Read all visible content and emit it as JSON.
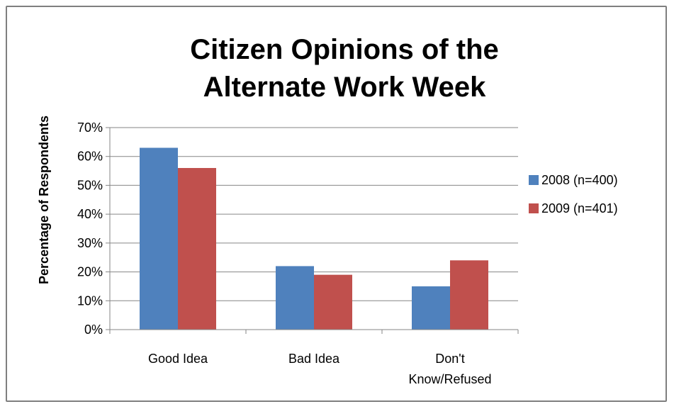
{
  "chart_data": {
    "type": "bar",
    "title": [
      "Citizen Opinions of the",
      "Alternate Work Week"
    ],
    "ylabel": "Percentage of Respondents",
    "xlabel": "",
    "categories": [
      [
        "Good Idea"
      ],
      [
        "Bad Idea"
      ],
      [
        "Don't",
        "Know/Refused"
      ]
    ],
    "series": [
      {
        "name": "2008 (n=400)",
        "color": "#4f81bd",
        "values": [
          63,
          22,
          15
        ]
      },
      {
        "name": "2009 (n=401)",
        "color": "#c0504d",
        "values": [
          56,
          19,
          24
        ]
      }
    ],
    "ylim": [
      0,
      70
    ],
    "yticks": [
      0,
      10,
      20,
      30,
      40,
      50,
      60,
      70
    ],
    "ytick_format": "{v}%",
    "grid": true,
    "legend": "right"
  }
}
